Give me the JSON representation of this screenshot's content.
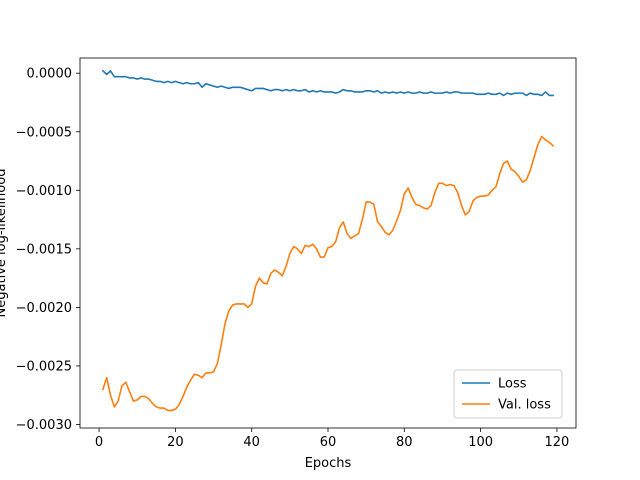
{
  "chart_data": {
    "type": "line",
    "title": "",
    "xlabel": "Epochs",
    "ylabel": "Negative log-likelihood",
    "xlim": [
      -5,
      125
    ],
    "ylim": [
      -0.00303,
      0.00013
    ],
    "xticks": [
      0,
      20,
      40,
      60,
      80,
      100,
      120
    ],
    "yticks": [
      0.0,
      -0.0005,
      -0.001,
      -0.0015,
      -0.002,
      -0.0025,
      -0.003
    ],
    "ytick_labels": [
      "0.0000",
      "−0.0005",
      "−0.0010",
      "−0.0015",
      "−0.0020",
      "−0.0025",
      "−0.0030"
    ],
    "grid": false,
    "legend_position": "lower-right",
    "series": [
      {
        "name": "Loss",
        "color": "#1f77b4",
        "points": [
          [
            1,
            2e-05
          ],
          [
            2,
            -1e-05
          ],
          [
            3,
            2e-05
          ],
          [
            4,
            -3e-05
          ],
          [
            5,
            -3e-05
          ],
          [
            6,
            -3e-05
          ],
          [
            7,
            -3e-05
          ],
          [
            8,
            -4e-05
          ],
          [
            9,
            -4e-05
          ],
          [
            10,
            -5e-05
          ],
          [
            11,
            -4e-05
          ],
          [
            12,
            -5e-05
          ],
          [
            13,
            -5e-05
          ],
          [
            14,
            -6e-05
          ],
          [
            15,
            -7e-05
          ],
          [
            16,
            -7e-05
          ],
          [
            17,
            -8e-05
          ],
          [
            18,
            -7e-05
          ],
          [
            19,
            -8e-05
          ],
          [
            20,
            -7e-05
          ],
          [
            21,
            -8e-05
          ],
          [
            22,
            -9e-05
          ],
          [
            23,
            -8e-05
          ],
          [
            24,
            -9e-05
          ],
          [
            25,
            -9e-05
          ],
          [
            26,
            -8e-05
          ],
          [
            27,
            -0.00012
          ],
          [
            28,
            -9e-05
          ],
          [
            29,
            -0.0001
          ],
          [
            30,
            -0.00011
          ],
          [
            31,
            -0.00012
          ],
          [
            32,
            -0.00011
          ],
          [
            33,
            -0.00012
          ],
          [
            34,
            -0.00013
          ],
          [
            35,
            -0.00012
          ],
          [
            36,
            -0.00012
          ],
          [
            37,
            -0.00012
          ],
          [
            38,
            -0.00013
          ],
          [
            39,
            -0.00014
          ],
          [
            40,
            -0.00015
          ],
          [
            41,
            -0.00013
          ],
          [
            42,
            -0.00013
          ],
          [
            43,
            -0.00013
          ],
          [
            44,
            -0.00014
          ],
          [
            45,
            -0.00015
          ],
          [
            46,
            -0.00014
          ],
          [
            47,
            -0.00014
          ],
          [
            48,
            -0.00015
          ],
          [
            49,
            -0.00014
          ],
          [
            50,
            -0.00015
          ],
          [
            51,
            -0.00014
          ],
          [
            52,
            -0.00015
          ],
          [
            53,
            -0.00015
          ],
          [
            54,
            -0.00014
          ],
          [
            55,
            -0.00016
          ],
          [
            56,
            -0.00015
          ],
          [
            57,
            -0.00016
          ],
          [
            58,
            -0.00015
          ],
          [
            59,
            -0.00016
          ],
          [
            60,
            -0.00016
          ],
          [
            61,
            -0.00016
          ],
          [
            62,
            -0.00017
          ],
          [
            63,
            -0.00016
          ],
          [
            64,
            -0.00014
          ],
          [
            65,
            -0.00015
          ],
          [
            66,
            -0.00015
          ],
          [
            67,
            -0.00016
          ],
          [
            68,
            -0.00016
          ],
          [
            69,
            -0.00016
          ],
          [
            70,
            -0.00015
          ],
          [
            71,
            -0.00015
          ],
          [
            72,
            -0.00016
          ],
          [
            73,
            -0.00015
          ],
          [
            74,
            -0.00017
          ],
          [
            75,
            -0.00016
          ],
          [
            76,
            -0.00017
          ],
          [
            77,
            -0.00016
          ],
          [
            78,
            -0.00017
          ],
          [
            79,
            -0.00016
          ],
          [
            80,
            -0.00017
          ],
          [
            81,
            -0.00016
          ],
          [
            82,
            -0.00017
          ],
          [
            83,
            -0.00017
          ],
          [
            84,
            -0.00016
          ],
          [
            85,
            -0.00017
          ],
          [
            86,
            -0.00017
          ],
          [
            87,
            -0.00016
          ],
          [
            88,
            -0.00017
          ],
          [
            89,
            -0.00017
          ],
          [
            90,
            -0.00017
          ],
          [
            91,
            -0.00016
          ],
          [
            92,
            -0.00017
          ],
          [
            93,
            -0.00016
          ],
          [
            94,
            -0.00016
          ],
          [
            95,
            -0.00017
          ],
          [
            96,
            -0.00017
          ],
          [
            97,
            -0.00017
          ],
          [
            98,
            -0.00017
          ],
          [
            99,
            -0.00018
          ],
          [
            100,
            -0.00018
          ],
          [
            101,
            -0.00018
          ],
          [
            102,
            -0.00017
          ],
          [
            103,
            -0.00018
          ],
          [
            104,
            -0.00018
          ],
          [
            105,
            -0.00017
          ],
          [
            106,
            -0.00019
          ],
          [
            107,
            -0.00017
          ],
          [
            108,
            -0.00018
          ],
          [
            109,
            -0.00017
          ],
          [
            110,
            -0.00017
          ],
          [
            111,
            -0.00017
          ],
          [
            112,
            -0.00019
          ],
          [
            113,
            -0.00017
          ],
          [
            114,
            -0.00018
          ],
          [
            115,
            -0.00018
          ],
          [
            116,
            -0.00019
          ],
          [
            117,
            -0.00016
          ],
          [
            118,
            -0.00019
          ],
          [
            119,
            -0.00019
          ]
        ]
      },
      {
        "name": "Val. loss",
        "color": "#ff7f0e",
        "points": [
          [
            1,
            -0.0027
          ],
          [
            2,
            -0.0026
          ],
          [
            3,
            -0.00275
          ],
          [
            4,
            -0.00285
          ],
          [
            5,
            -0.0028
          ],
          [
            6,
            -0.00267
          ],
          [
            7,
            -0.00264
          ],
          [
            8,
            -0.00272
          ],
          [
            9,
            -0.0028
          ],
          [
            10,
            -0.00279
          ],
          [
            11,
            -0.00276
          ],
          [
            12,
            -0.00276
          ],
          [
            13,
            -0.00278
          ],
          [
            14,
            -0.00282
          ],
          [
            15,
            -0.00285
          ],
          [
            16,
            -0.00286
          ],
          [
            17,
            -0.00286
          ],
          [
            18,
            -0.00288
          ],
          [
            19,
            -0.00288
          ],
          [
            20,
            -0.00287
          ],
          [
            21,
            -0.00283
          ],
          [
            22,
            -0.00276
          ],
          [
            23,
            -0.00268
          ],
          [
            24,
            -0.00262
          ],
          [
            25,
            -0.00257
          ],
          [
            26,
            -0.00258
          ],
          [
            27,
            -0.0026
          ],
          [
            28,
            -0.00256
          ],
          [
            29,
            -0.00256
          ],
          [
            30,
            -0.00255
          ],
          [
            31,
            -0.00248
          ],
          [
            32,
            -0.00232
          ],
          [
            33,
            -0.00214
          ],
          [
            34,
            -0.00203
          ],
          [
            35,
            -0.00198
          ],
          [
            36,
            -0.00197
          ],
          [
            37,
            -0.00197
          ],
          [
            38,
            -0.00197
          ],
          [
            39,
            -0.002
          ],
          [
            40,
            -0.00197
          ],
          [
            41,
            -0.00182
          ],
          [
            42,
            -0.00175
          ],
          [
            43,
            -0.00179
          ],
          [
            44,
            -0.0018
          ],
          [
            45,
            -0.00171
          ],
          [
            46,
            -0.00168
          ],
          [
            47,
            -0.0017
          ],
          [
            48,
            -0.00173
          ],
          [
            49,
            -0.00165
          ],
          [
            50,
            -0.00154
          ],
          [
            51,
            -0.00148
          ],
          [
            52,
            -0.0015
          ],
          [
            53,
            -0.00154
          ],
          [
            54,
            -0.00147
          ],
          [
            55,
            -0.00148
          ],
          [
            56,
            -0.00146
          ],
          [
            57,
            -0.0015
          ],
          [
            58,
            -0.00157
          ],
          [
            59,
            -0.00157
          ],
          [
            60,
            -0.00149
          ],
          [
            61,
            -0.00148
          ],
          [
            62,
            -0.00144
          ],
          [
            63,
            -0.00132
          ],
          [
            64,
            -0.00127
          ],
          [
            65,
            -0.00137
          ],
          [
            66,
            -0.00141
          ],
          [
            67,
            -0.00139
          ],
          [
            68,
            -0.00137
          ],
          [
            69,
            -0.00125
          ],
          [
            70,
            -0.0011
          ],
          [
            71,
            -0.0011
          ],
          [
            72,
            -0.00112
          ],
          [
            73,
            -0.00127
          ],
          [
            74,
            -0.00131
          ],
          [
            75,
            -0.00136
          ],
          [
            76,
            -0.00138
          ],
          [
            77,
            -0.00134
          ],
          [
            78,
            -0.00126
          ],
          [
            79,
            -0.00117
          ],
          [
            80,
            -0.00103
          ],
          [
            81,
            -0.00098
          ],
          [
            82,
            -0.00106
          ],
          [
            83,
            -0.00112
          ],
          [
            84,
            -0.00113
          ],
          [
            85,
            -0.00115
          ],
          [
            86,
            -0.00116
          ],
          [
            87,
            -0.00113
          ],
          [
            88,
            -0.00102
          ],
          [
            89,
            -0.00094
          ],
          [
            90,
            -0.00094
          ],
          [
            91,
            -0.00096
          ],
          [
            92,
            -0.00095
          ],
          [
            93,
            -0.00096
          ],
          [
            94,
            -0.00102
          ],
          [
            95,
            -0.00113
          ],
          [
            96,
            -0.00121
          ],
          [
            97,
            -0.00118
          ],
          [
            98,
            -0.00109
          ],
          [
            99,
            -0.00106
          ],
          [
            100,
            -0.00105
          ],
          [
            101,
            -0.00105
          ],
          [
            102,
            -0.00104
          ],
          [
            103,
            -0.001
          ],
          [
            104,
            -0.00097
          ],
          [
            105,
            -0.00086
          ],
          [
            106,
            -0.00077
          ],
          [
            107,
            -0.00075
          ],
          [
            108,
            -0.00082
          ],
          [
            109,
            -0.00084
          ],
          [
            110,
            -0.00088
          ],
          [
            111,
            -0.00093
          ],
          [
            112,
            -0.00091
          ],
          [
            113,
            -0.00083
          ],
          [
            114,
            -0.00072
          ],
          [
            115,
            -0.00061
          ],
          [
            116,
            -0.00054
          ],
          [
            117,
            -0.00057
          ],
          [
            118,
            -0.00059
          ],
          [
            119,
            -0.00062
          ]
        ]
      }
    ]
  }
}
